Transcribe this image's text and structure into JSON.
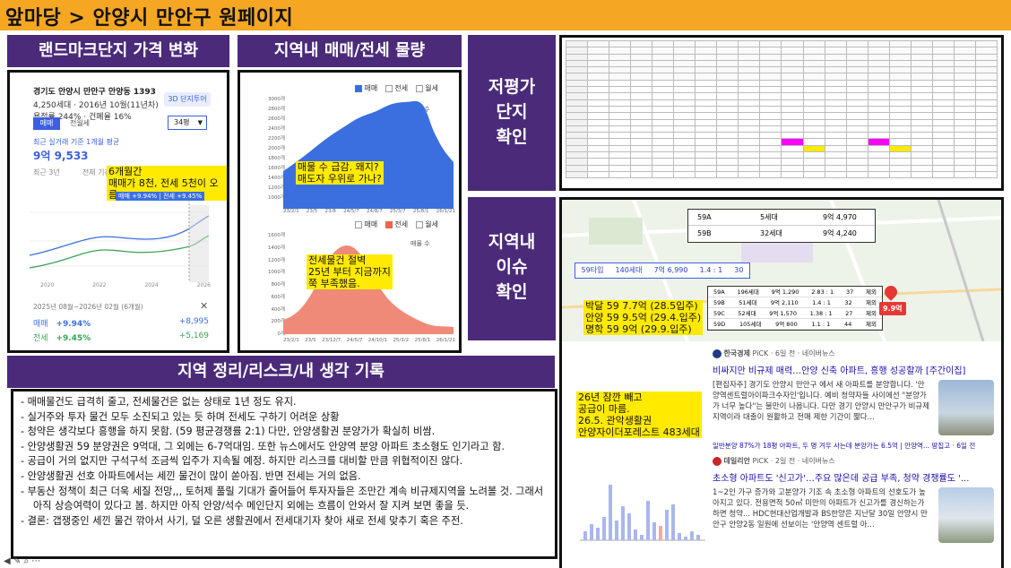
{
  "top_title": "앞마당 > 안양시 만안구 원페이지",
  "headers": {
    "landmark": "랜드마크단지 가격 변화",
    "volume": "지역내 매매/전세 물량",
    "undervalue": "저평가 단지 확인",
    "issue": "지역내 이슈 확인",
    "summary": "지역 정리/리스크/내 생각 기록"
  },
  "landmark_panel": {
    "complex_name": "경기도 안양시 만안구 안양동 1393",
    "info1": "4,250세대 · 2016년 10월(11년차)",
    "info2": "용적률 244% · 건폐율 16%",
    "tour_btn": "3D 단지투어",
    "tab_sale": "매매",
    "tab_jeonse": "전월세",
    "size_select": "34평",
    "recent_label": "최근 실거래 기준 1개월 평균",
    "recent_price": "9억 9,533",
    "period_labels": [
      "최근 3년",
      "전체 기간"
    ],
    "compare_label": "비교",
    "chart_tag": "매매 +9.94% | 전세 +9.45%",
    "annotation": "6개월간\n매매가 8천, 전세 5천이 오름.",
    "x_labels": [
      "2020",
      "2022",
      "2024",
      "2026"
    ],
    "period_text": "2025년 08월~2026년 02월 (6개월)",
    "rows": [
      {
        "label": "매매",
        "pct": "+9.94%",
        "amt": "+8,995"
      },
      {
        "label": "전세",
        "pct": "+9.45%",
        "amt": "+5,169"
      }
    ],
    "close_icon": "close-icon"
  },
  "volume_panel": {
    "legend_top": [
      "매매",
      "전세",
      "월세"
    ],
    "label_top": "매물 수",
    "y_ticks_top": [
      "3000개",
      "2800개",
      "2600개",
      "2400개",
      "2200개",
      "2000개",
      "1800개",
      "1600개",
      "1400개",
      "1200개",
      "1000개"
    ],
    "x_ticks": [
      "23/2/1",
      "23/5",
      "23/8",
      "24/5/7",
      "24/8/7",
      "25/3/7",
      "25/8/1",
      "26/1/21"
    ],
    "annotation_top": "매물 수 급감. 왜지?\n매도자 우위로 가나?",
    "legend_bottom": [
      "매매",
      "전세",
      "월세"
    ],
    "label_bottom": "매물 수",
    "y_ticks_bottom": [
      "1600개",
      "1400개",
      "1200개",
      "1000개",
      "800개",
      "600개",
      "400개",
      "200개",
      "0개"
    ],
    "x_ticks_bottom": [
      "23/2/1",
      "23/5",
      "23/12/7",
      "24/5/7",
      "24/10/1",
      "25/3/2",
      "25/8/1",
      "26/1/21"
    ],
    "annotation_bottom": "전세물건 절벽\n25년 부터 지금까지\n쭉 부족했음."
  },
  "issue_panel": {
    "price_table": [
      {
        "type": "59A",
        "households": "5세대",
        "price": "9억 4,970"
      },
      {
        "type": "59B",
        "households": "32세대",
        "price": "9억 4,240"
      }
    ],
    "bar_row": {
      "type": "59타입",
      "households": "140세대",
      "price": "7억 6,990",
      "ratio": "1.4 : 1",
      "num": "30"
    },
    "mini_table": [
      {
        "type": "59A",
        "hh": "196세대",
        "price": "9억 1,290",
        "ratio": "2.83 : 1",
        "n": "37",
        "st": "제외"
      },
      {
        "type": "59B",
        "hh": "51세대",
        "price": "9억 2,110",
        "ratio": "1.4 : 1",
        "n": "32",
        "st": "제외"
      },
      {
        "type": "59C",
        "hh": "52세대",
        "price": "9억 1,570",
        "ratio": "1.38 : 1",
        "n": "27",
        "st": "제외"
      },
      {
        "type": "59D",
        "hh": "105세대",
        "price": "9억 800",
        "ratio": "1.1 : 1",
        "n": "44",
        "st": "제외"
      }
    ],
    "annotation_map": "박달 59 7.7억 (28.5입주)\n안양 59 9.5억 (29.4.입주)\n명학 59 9억 (29.9.입주)",
    "map_badge": "9.9억",
    "annotation_supply": "26년 잠깐 빼고\n공급이 마름.\n26.5. 관악생활권\n안양자이더포레스트 483세대",
    "news": [
      {
        "source": "한국경제",
        "meta": "PiCK · 6일 전 · 네이버뉴스",
        "title": "비싸지만 비규제 매력…안양 신축 아파트, 흥행 성공할까 [주간이집]",
        "body": "[편집자주] 경기도 안양시 만안구 에서 새 아파트를 분양합니다. '안양역센트럴아이파크수자인'입니다. 예비 청약자들 사이에선 \"분양가가 너무 높다\"는 불만이 나옵니다. 다만 경기 안양시 만안구가 비규제지역이라 대출이 원활하고 전매 제한 기간이 짧다...",
        "footer": "일반분양 87%가 18평 아파트, 두 명 겨우 사는데 분양가는 6.5억 | 안양역... 땅집고 · 6일 전"
      },
      {
        "source": "데일리안",
        "meta": "PiCK · 2일 전 · 네이버뉴스",
        "title": "초소형 아파트도 '신고가'…주요 많은데 공급 부족, 청약 경쟁률도 '...",
        "body": "1~2인 가구 증가와 고분양가 기조 속 초소형 아파트의 선호도가 높아지고 있다. 전용면적 50㎡ 미만의 아파트가 신고가를 경신하는가 하면 청약... HDC현대산업개발과 BS한양은 지난달 30일 안양시 만안구 안양2동 일원에 선보이는 '안양역 센트럴 아..."
      }
    ]
  },
  "notes": [
    "매매물건도 급격히 줄고, 전세물건은 없는 상태로 1년 정도 유지.",
    "실거주와 투자 물건 모두 소진되고 있는 듯 하며 전세도 구하기 어려운 상황",
    "청약은 생각보다 흥행을 하지 못함. (59 평균경쟁률 2:1) 다만, 안양생활권 분양가가 확실히 비쌈.",
    "안양생활권 59 분양권은 9억대, 그 외에는 6-7억대임. 또한 뉴스에서도 안양역 분양 아파트 초소형도 인기라고 함.",
    "공급이 거의 없지만 구석구석 조금씩 입주가 지속될 예정. 하지만 리스크를 대비할 만큼 위협적이진 않다.",
    "안양생활권 선호 아파트에서는 세낀 물건이 많이 쏟아짐. 반면 전세는 거의 없음.",
    "부동산 정책이 최근 더욱 세질 전망,,, 토허제 풀릴 기대가 줄어들어 투자자들은 조만간 계속 비규제지역을 노려볼 것. 그래서 아직 상승여력이 있다고 봄. 하지만 아직 안양/석수 메인단지 외에는 흐름이 안와서 잘 지켜 보면 좋을 듯.",
    "결론: 갭쟁중인 세낀 물건 깎아서 사기, 덜 오른 생활권에서 전세대기자 찾아 새로 전세 맞추기 혹은 주전."
  ],
  "colors": {
    "accent": "#4b2a7a",
    "top": "#f5a623",
    "highlight": "#ffea00",
    "blue": "#3b6fe0",
    "red": "#f08a78"
  }
}
